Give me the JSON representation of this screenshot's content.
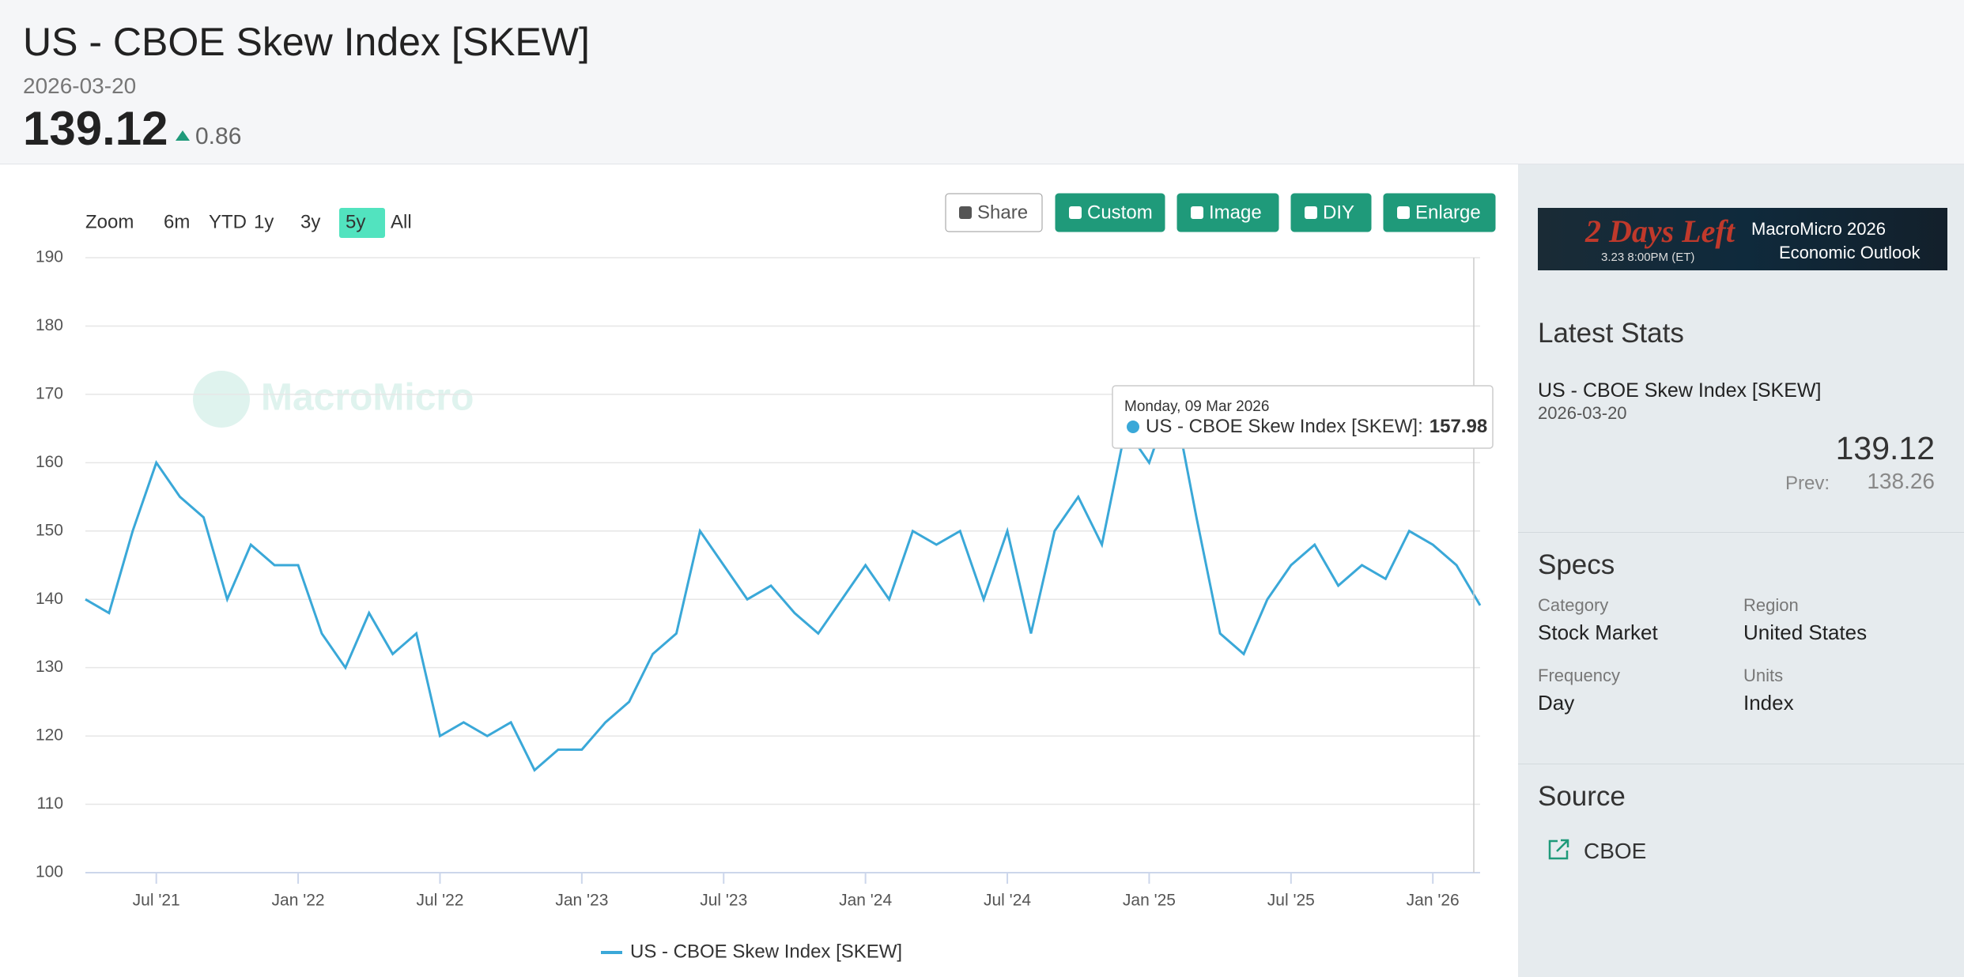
{
  "header": {
    "title": "US - CBOE Skew Index [SKEW]",
    "date": "2026-03-20",
    "value": "139.12",
    "change": "0.86"
  },
  "toolbar": {
    "zoom": "Zoom",
    "ranges": [
      "6m",
      "YTD",
      "1y",
      "3y",
      "5y",
      "All"
    ],
    "active": 4,
    "buttons": [
      "Share",
      "Custom",
      "Image",
      "DIY",
      "Enlarge"
    ]
  },
  "chart_data": {
    "type": "line",
    "watermark": "MacroMicro",
    "x": [
      "2021-04",
      "2021-05",
      "2021-06",
      "2021-07",
      "2021-08",
      "2021-09",
      "2021-10",
      "2021-11",
      "2021-12",
      "2022-01",
      "2022-02",
      "2022-03",
      "2022-04",
      "2022-05",
      "2022-06",
      "2022-07",
      "2022-08",
      "2022-09",
      "2022-10",
      "2022-11",
      "2022-12",
      "2023-01",
      "2023-02",
      "2023-03",
      "2023-04",
      "2023-05",
      "2023-06",
      "2023-07",
      "2023-08",
      "2023-09",
      "2023-10",
      "2023-11",
      "2023-12",
      "2024-01",
      "2024-02",
      "2024-03",
      "2024-04",
      "2024-05",
      "2024-06",
      "2024-07",
      "2024-08",
      "2024-09",
      "2024-10",
      "2024-11",
      "2024-12",
      "2025-01",
      "2025-02",
      "2025-03",
      "2025-04",
      "2025-05",
      "2025-06",
      "2025-07",
      "2025-08",
      "2025-09",
      "2025-10",
      "2025-11",
      "2025-12",
      "2026-01",
      "2026-02",
      "2026-03"
    ],
    "series": [
      {
        "name": "US - CBOE Skew Index [SKEW]",
        "color": "#3aa8d8",
        "values": [
          140,
          138,
          150,
          160,
          155,
          152,
          140,
          148,
          145,
          145,
          135,
          130,
          138,
          132,
          135,
          120,
          122,
          120,
          122,
          115,
          118,
          118,
          122,
          125,
          132,
          135,
          150,
          145,
          140,
          142,
          138,
          135,
          140,
          145,
          140,
          150,
          148,
          150,
          140,
          150,
          135,
          150,
          155,
          148,
          165,
          160,
          170,
          152,
          135,
          132,
          140,
          145,
          148,
          142,
          145,
          143,
          150,
          148,
          145,
          139.12
        ]
      }
    ],
    "xlim": [
      "2021-04",
      "2026-03"
    ],
    "xticks": [
      {
        "value": "2021-07",
        "label": "Jul '21"
      },
      {
        "value": "2022-01",
        "label": "Jan '22"
      },
      {
        "value": "2022-07",
        "label": "Jul '22"
      },
      {
        "value": "2023-01",
        "label": "Jan '23"
      },
      {
        "value": "2023-07",
        "label": "Jul '23"
      },
      {
        "value": "2024-01",
        "label": "Jan '24"
      },
      {
        "value": "2024-07",
        "label": "Jul '24"
      },
      {
        "value": "2025-01",
        "label": "Jan '25"
      },
      {
        "value": "2025-07",
        "label": "Jul '25"
      },
      {
        "value": "2026-01",
        "label": "Jan '26"
      }
    ],
    "ylim": [
      100,
      190
    ],
    "yticks": [
      100,
      110,
      120,
      130,
      140,
      150,
      160,
      170,
      180,
      190
    ],
    "grid": true,
    "tooltip": {
      "date": "Monday, 09 Mar 2026",
      "label": "US - CBOE Skew Index [SKEW]:",
      "value": "157.98"
    }
  },
  "sidebar": {
    "banner": {
      "big": "2 Days Left",
      "time": "3.23 8:00PM (ET)",
      "brand": "MacroMicro 2026",
      "sub": "Economic Outlook"
    },
    "latest": {
      "heading": "Latest Stats",
      "name": "US - CBOE Skew Index [SKEW]",
      "date": "2026-03-20",
      "value": "139.12",
      "prev_label": "Prev:",
      "prev": "138.26"
    },
    "specs": {
      "heading": "Specs",
      "items": [
        [
          "Category",
          "Stock Market"
        ],
        [
          "Region",
          "United States"
        ],
        [
          "Frequency",
          "Day"
        ],
        [
          "Units",
          "Index"
        ]
      ]
    },
    "source": {
      "heading": "Source",
      "name": "CBOE"
    }
  }
}
